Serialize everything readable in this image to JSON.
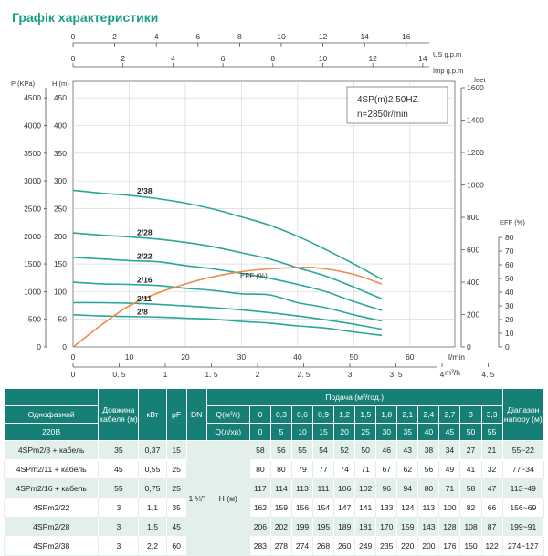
{
  "title": "Графік характеристики",
  "colors": {
    "title": "#1a9e8a",
    "curve": "#2aa69a",
    "eff": "#f08a4b",
    "header": "#167f76",
    "row_alt": "#e3efe9"
  },
  "chart_data": {
    "type": "line",
    "model_box": [
      "4SP(m)2  50HZ",
      "n=2850r/min"
    ],
    "axes": {
      "left_kpa": {
        "label": "P (KPa)",
        "ticks": [
          "0",
          "500",
          "1000",
          "1500",
          "2000",
          "2500",
          "3000",
          "3500",
          "4000",
          "4500"
        ]
      },
      "left_m": {
        "label": "H (m)",
        "ticks": [
          "0",
          "50",
          "100",
          "150",
          "200",
          "250",
          "300",
          "350",
          "400",
          "450"
        ],
        "ylim": [
          0,
          480
        ]
      },
      "right_feet": {
        "label": "feet",
        "ticks": [
          "0",
          "200",
          "400",
          "600",
          "800",
          "1000",
          "1200",
          "1400",
          "1600"
        ]
      },
      "right_eff": {
        "label": "EFF (%)",
        "ticks": [
          "0",
          "10",
          "20",
          "30",
          "40",
          "50",
          "60",
          "70",
          "80"
        ]
      },
      "top_usgpm": {
        "label": "US g.p.m",
        "ticks": [
          "0",
          "2",
          "4",
          "6",
          "8",
          "10",
          "12",
          "14",
          "16"
        ]
      },
      "top_impgpm": {
        "label": "Imp g.p.m",
        "ticks": [
          "0",
          "2",
          "4",
          "6",
          "8",
          "10",
          "12",
          "14"
        ]
      },
      "bottom_lmin": {
        "label": "l/min",
        "ticks": [
          "0",
          "10",
          "20",
          "30",
          "40",
          "50",
          "60"
        ],
        "xlim": [
          0,
          68
        ]
      },
      "bottom_m3h": {
        "label": "m³/h",
        "ticks": [
          "0",
          "0. 5",
          "1",
          "1. 5",
          "2",
          "2. 5",
          "3",
          "3. 5",
          "4",
          "4. 5"
        ]
      }
    },
    "series": [
      {
        "name": "2/8",
        "x": [
          0,
          5,
          10,
          15,
          20,
          25,
          30,
          35,
          40,
          45,
          50,
          55
        ],
        "y": [
          58,
          56,
          55,
          54,
          52,
          50,
          46,
          43,
          38,
          34,
          27,
          21
        ]
      },
      {
        "name": "2/11",
        "x": [
          0,
          5,
          10,
          15,
          20,
          25,
          30,
          35,
          40,
          45,
          50,
          55
        ],
        "y": [
          80,
          80,
          79,
          77,
          74,
          71,
          67,
          62,
          56,
          49,
          41,
          32
        ]
      },
      {
        "name": "2/16",
        "x": [
          0,
          5,
          10,
          15,
          20,
          25,
          30,
          35,
          40,
          45,
          50,
          55
        ],
        "y": [
          117,
          114,
          113,
          111,
          106,
          102,
          96,
          94,
          80,
          71,
          58,
          47
        ]
      },
      {
        "name": "2/22",
        "x": [
          0,
          5,
          10,
          15,
          20,
          25,
          30,
          35,
          40,
          45,
          50,
          55
        ],
        "y": [
          162,
          159,
          156,
          154,
          147,
          141,
          133,
          124,
          113,
          100,
          82,
          66
        ]
      },
      {
        "name": "2/28",
        "x": [
          0,
          5,
          10,
          15,
          20,
          25,
          30,
          35,
          40,
          45,
          50,
          55
        ],
        "y": [
          206,
          202,
          199,
          195,
          189,
          181,
          170,
          159,
          143,
          128,
          108,
          87
        ]
      },
      {
        "name": "2/38",
        "x": [
          0,
          5,
          10,
          15,
          20,
          25,
          30,
          35,
          40,
          45,
          50,
          55
        ],
        "y": [
          283,
          278,
          274,
          268,
          260,
          249,
          235,
          220,
          200,
          176,
          150,
          122
        ]
      }
    ],
    "eff": {
      "name": "EFF (%)",
      "x": [
        0,
        10,
        20,
        30,
        40,
        45,
        50,
        55
      ],
      "y": [
        0,
        30,
        46,
        55,
        58,
        57,
        53,
        46
      ]
    }
  },
  "table": {
    "col_single_phase": "Однофазний",
    "col_220": "220В",
    "col_cable": "Довжина кабеля (м)",
    "col_kw": "кВт",
    "col_uf": "μF",
    "col_dn": "DN",
    "col_flow": "Подача (м³/год.)",
    "q_m3h_label": "Q(м³/г)",
    "q_lmin_label": "Q(л/хв)",
    "q_m3h": [
      "0",
      "0,3",
      "0,6",
      "0,9",
      "1,2",
      "1,5",
      "1,8",
      "2,1",
      "2,4",
      "2,7",
      "3",
      "3,3"
    ],
    "q_lmin": [
      "0",
      "5",
      "10",
      "15",
      "20",
      "25",
      "30",
      "35",
      "40",
      "45",
      "50",
      "55"
    ],
    "col_range": "Діапазон напору (м)",
    "dn_value": "1 ¼\"",
    "head_label": "H (м)",
    "rows": [
      {
        "model": "4SPm2/8 + кабель",
        "cable": "35",
        "kw": "0,37",
        "uf": "15",
        "h": [
          "58",
          "56",
          "55",
          "54",
          "52",
          "50",
          "46",
          "43",
          "38",
          "34",
          "27",
          "21"
        ],
        "range": "55~22"
      },
      {
        "model": "4SPm2/11 + кабель",
        "cable": "45",
        "kw": "0,55",
        "uf": "25",
        "h": [
          "80",
          "80",
          "79",
          "77",
          "74",
          "71",
          "67",
          "62",
          "56",
          "49",
          "41",
          "32"
        ],
        "range": "77~34"
      },
      {
        "model": "4SPm2/16 + кабель",
        "cable": "55",
        "kw": "0,75",
        "uf": "25",
        "h": [
          "117",
          "114",
          "113",
          "111",
          "106",
          "102",
          "96",
          "94",
          "80",
          "71",
          "58",
          "47"
        ],
        "range": "113~49"
      },
      {
        "model": "4SPm2/22",
        "cable": "3",
        "kw": "1,1",
        "uf": "35",
        "h": [
          "162",
          "159",
          "156",
          "154",
          "147",
          "141",
          "133",
          "124",
          "113",
          "100",
          "82",
          "66"
        ],
        "range": "156~69"
      },
      {
        "model": "4SPm2/28",
        "cable": "3",
        "kw": "1,5",
        "uf": "45",
        "h": [
          "206",
          "202",
          "199",
          "195",
          "189",
          "181",
          "170",
          "159",
          "143",
          "128",
          "108",
          "87"
        ],
        "range": "199~91"
      },
      {
        "model": "4SPm2/38",
        "cable": "3",
        "kw": "2,2",
        "uf": "60",
        "h": [
          "283",
          "278",
          "274",
          "268",
          "260",
          "249",
          "235",
          "220",
          "200",
          "176",
          "150",
          "122"
        ],
        "range": "274~127"
      }
    ]
  }
}
